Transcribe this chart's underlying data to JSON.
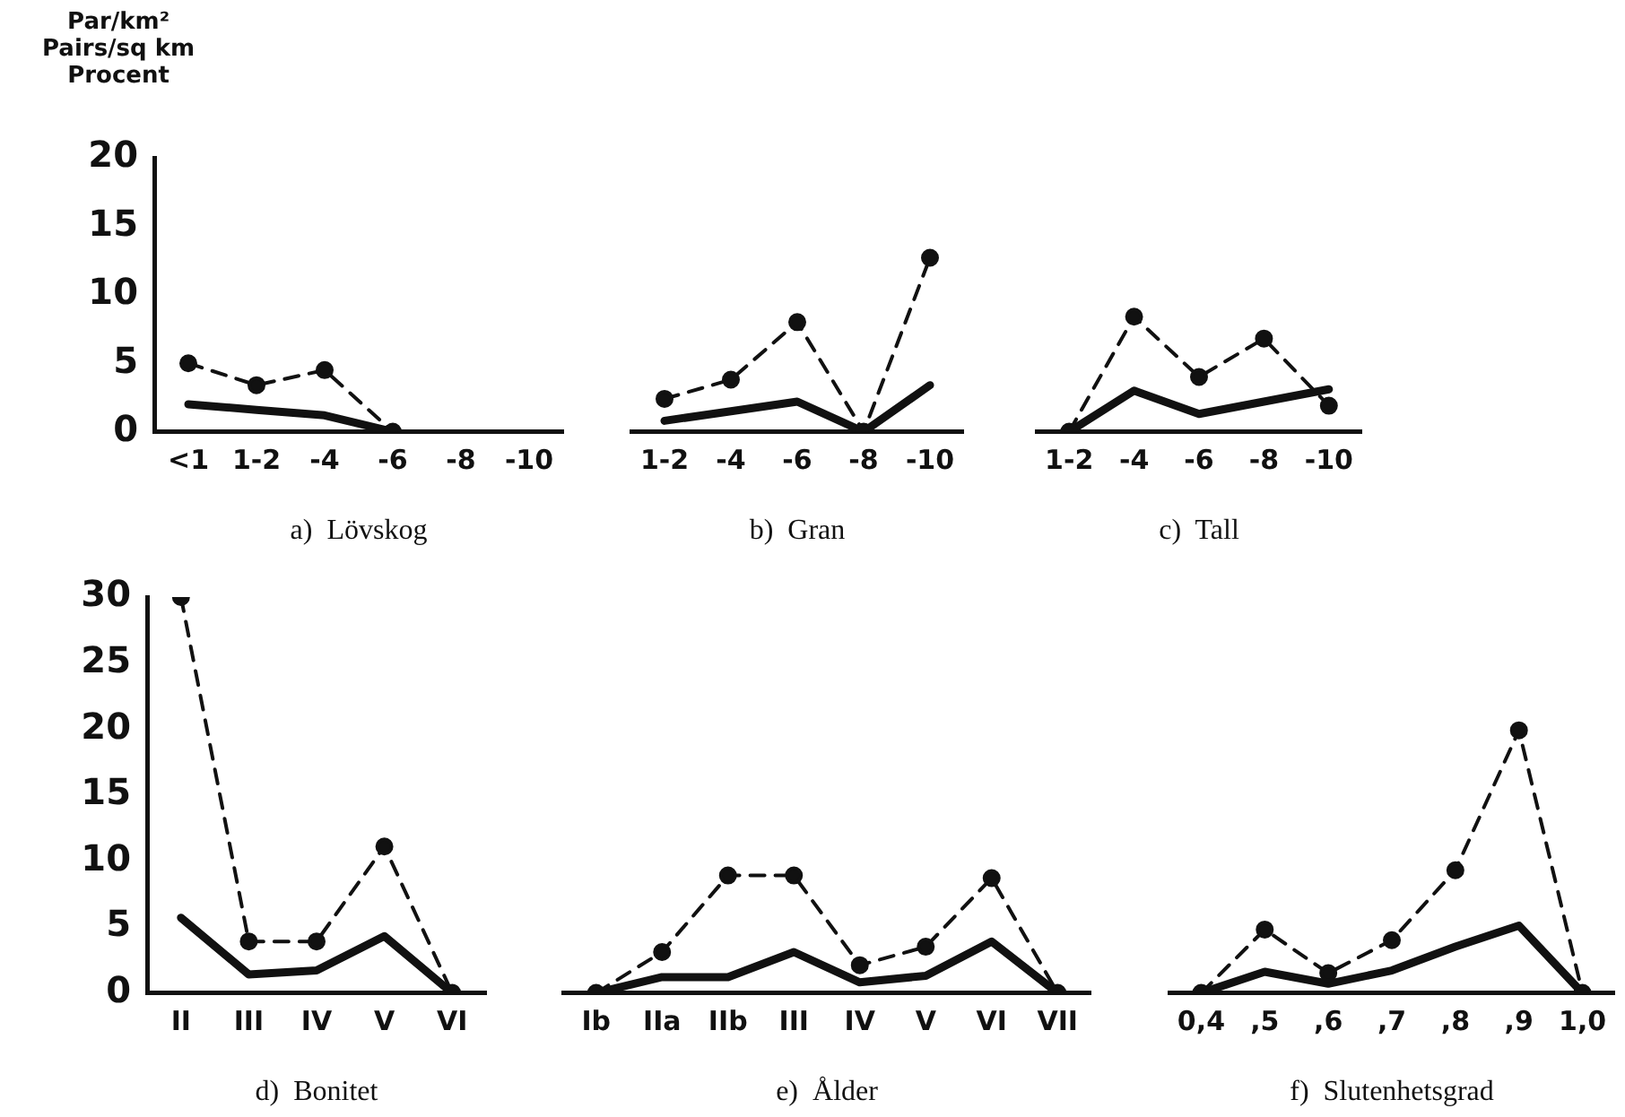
{
  "chart_data": [
    {
      "type": "line",
      "ylabel": "Par/km²\nPairs/sq km\nProcent",
      "xlabel": "a)  Lövskog",
      "categories": [
        "<1",
        "1-2",
        "-4",
        "-6",
        "-8",
        "-10"
      ],
      "ylim": [
        0,
        20
      ],
      "yticks": [
        0,
        5,
        10,
        15,
        20
      ],
      "grid": false,
      "legend": false,
      "series": [
        {
          "color": "#111111",
          "line_style": "dashed",
          "marker": "circle",
          "values": [
            5.0,
            3.4,
            4.5,
            0,
            null,
            null
          ]
        },
        {
          "color": "#111111",
          "line_style": "solid",
          "marker": "none",
          "values": [
            2.0,
            1.6,
            1.2,
            0,
            null,
            null
          ]
        }
      ]
    },
    {
      "type": "line",
      "xlabel": "b)  Gran",
      "categories": [
        "1-2",
        "-4",
        "-6",
        "-8",
        "-10"
      ],
      "ylim": [
        0,
        20
      ],
      "yticks": [
        0,
        5,
        10,
        15,
        20
      ],
      "tick_labels": "x",
      "grid": false,
      "legend": false,
      "series": [
        {
          "color": "#111111",
          "line_style": "dashed",
          "marker": "circle",
          "values": [
            2.4,
            3.8,
            8.0,
            0,
            12.7
          ]
        },
        {
          "color": "#111111",
          "line_style": "solid",
          "marker": "none",
          "values": [
            0.8,
            1.5,
            2.2,
            0,
            3.4
          ]
        }
      ]
    },
    {
      "type": "line",
      "xlabel": "c)  Tall",
      "categories": [
        "1-2",
        "-4",
        "-6",
        "-8",
        "-10"
      ],
      "ylim": [
        0,
        20
      ],
      "yticks": [
        0,
        5,
        10,
        15,
        20
      ],
      "tick_labels": "x",
      "grid": false,
      "legend": false,
      "series": [
        {
          "color": "#111111",
          "line_style": "dashed",
          "marker": "circle",
          "values": [
            0,
            8.4,
            4.0,
            6.8,
            1.9
          ]
        },
        {
          "color": "#111111",
          "line_style": "solid",
          "marker": "none",
          "values": [
            0,
            3.0,
            1.3,
            2.2,
            3.1
          ]
        }
      ]
    },
    {
      "type": "line",
      "xlabel": "d)  Bonitet",
      "categories": [
        "II",
        "III",
        "IV",
        "V",
        "VI"
      ],
      "ylim": [
        0,
        30
      ],
      "yticks": [
        0,
        5,
        10,
        15,
        20,
        25,
        30
      ],
      "grid": false,
      "legend": false,
      "series": [
        {
          "color": "#111111",
          "line_style": "dashed",
          "marker": "circle",
          "values": [
            30,
            3.9,
            3.9,
            11.1,
            0
          ]
        },
        {
          "color": "#111111",
          "line_style": "solid",
          "marker": "none",
          "values": [
            5.7,
            1.4,
            1.7,
            4.3,
            0
          ]
        }
      ]
    },
    {
      "type": "line",
      "xlabel": "e)  Ålder",
      "categories": [
        "Ib",
        "IIa",
        "IIb",
        "III",
        "IV",
        "V",
        "VI",
        "VII"
      ],
      "ylim": [
        0,
        30
      ],
      "yticks": [
        0,
        5,
        10,
        15,
        20,
        25,
        30
      ],
      "tick_labels": "x",
      "grid": false,
      "legend": false,
      "series": [
        {
          "color": "#111111",
          "line_style": "dashed",
          "marker": "circle",
          "values": [
            0,
            3.1,
            8.9,
            8.9,
            2.1,
            3.5,
            8.7,
            0
          ]
        },
        {
          "color": "#111111",
          "line_style": "solid",
          "marker": "none",
          "values": [
            0,
            1.2,
            1.2,
            3.1,
            0.8,
            1.3,
            3.9,
            0
          ]
        }
      ]
    },
    {
      "type": "line",
      "xlabel": "f)  Slutenhetsgrad",
      "categories": [
        "0,4",
        ",5",
        ",6",
        ",7",
        ",8",
        ",9",
        "1,0"
      ],
      "ylim": [
        0,
        30
      ],
      "yticks": [
        0,
        5,
        10,
        15,
        20,
        25,
        30
      ],
      "tick_labels": "x",
      "grid": false,
      "legend": false,
      "series": [
        {
          "color": "#111111",
          "line_style": "dashed",
          "marker": "circle",
          "values": [
            0,
            4.8,
            1.5,
            4.0,
            9.3,
            19.9,
            0
          ]
        },
        {
          "color": "#111111",
          "line_style": "solid",
          "marker": "none",
          "values": [
            0,
            1.6,
            0.7,
            1.7,
            3.5,
            5.1,
            0
          ]
        }
      ]
    }
  ]
}
